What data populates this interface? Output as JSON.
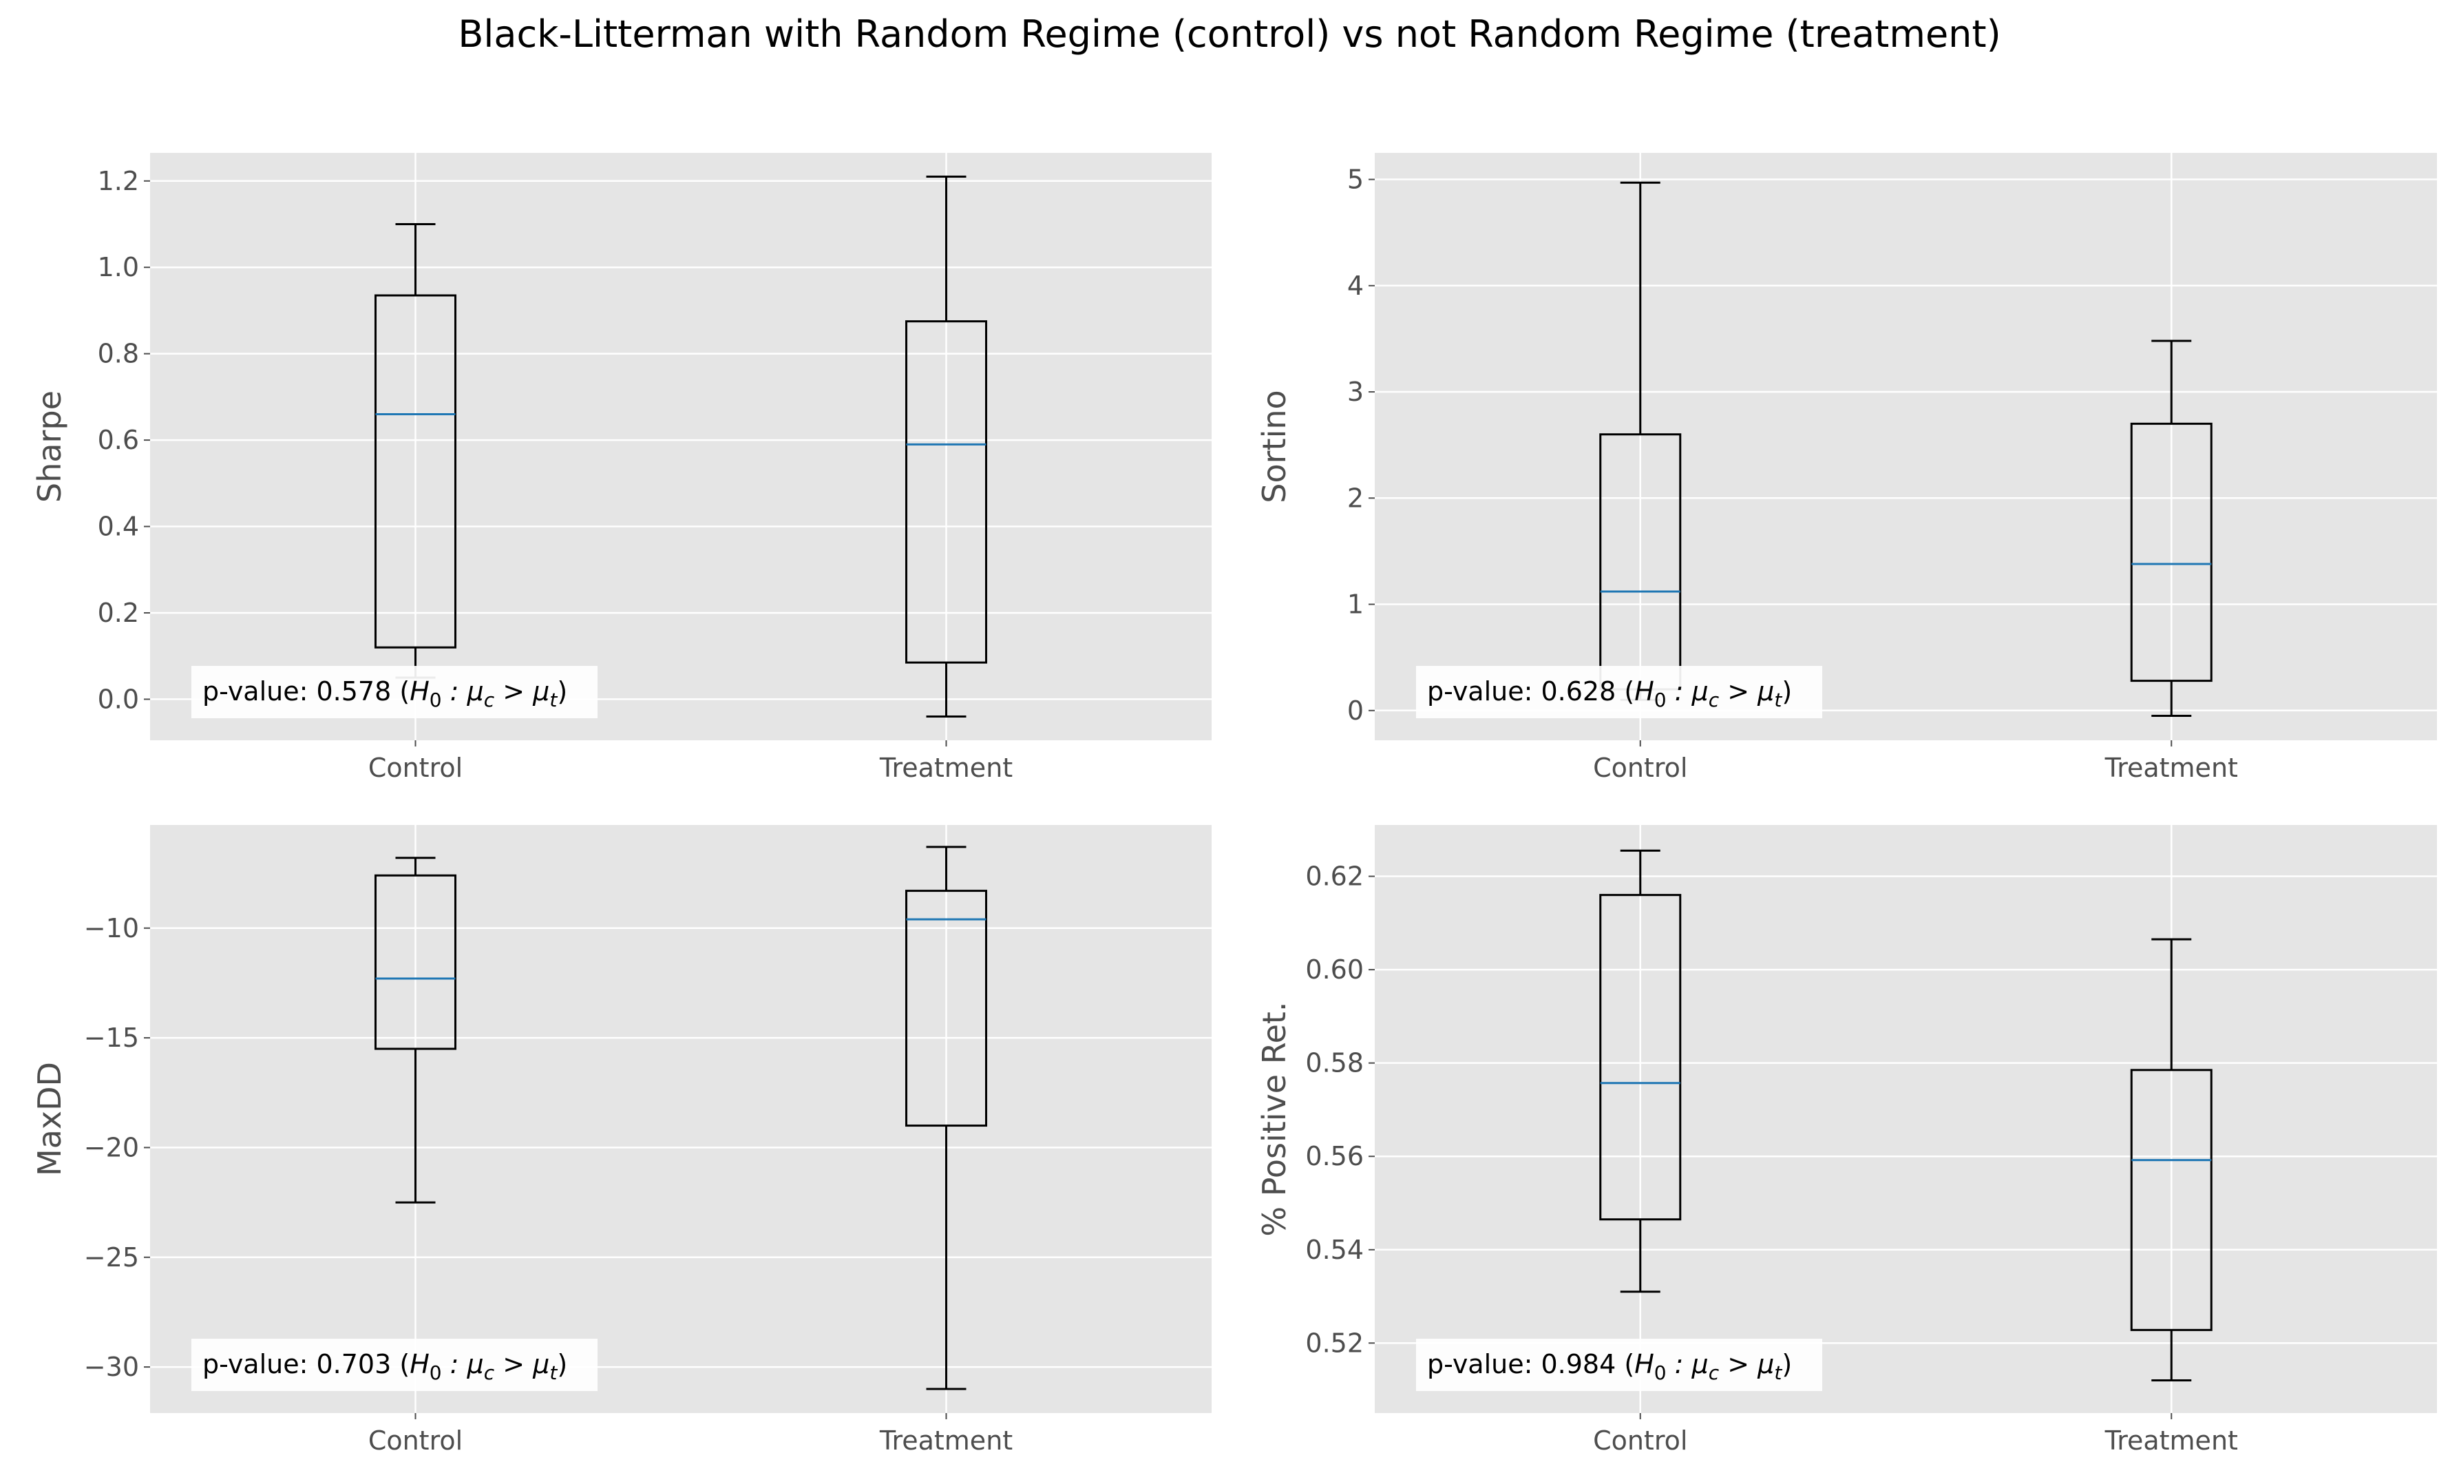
{
  "title": "Black-Litterman with Random Regime (control) vs not Random Regime (treatment)",
  "colors": {
    "panel_bg": "#e5e5e5",
    "grid": "#ffffff",
    "box": "#000000",
    "median": "#1f77b4",
    "tick_text": "#4d4d4d"
  },
  "chart_data": [
    {
      "type": "box",
      "ylabel": "Sharpe",
      "categories": [
        "Control",
        "Treatment"
      ],
      "ylim": [
        -0.095,
        1.265
      ],
      "yticks": [
        0.0,
        0.2,
        0.4,
        0.6,
        0.8,
        1.0,
        1.2
      ],
      "ytick_labels": [
        "0.0",
        "0.2",
        "0.4",
        "0.6",
        "0.8",
        "1.0",
        "1.2"
      ],
      "boxes": [
        {
          "name": "Control",
          "whisker_low": 0.05,
          "q1": 0.12,
          "median": 0.66,
          "q3": 0.935,
          "whisker_high": 1.1
        },
        {
          "name": "Treatment",
          "whisker_low": -0.04,
          "q1": 0.085,
          "median": 0.59,
          "q3": 0.875,
          "whisker_high": 1.21
        }
      ],
      "annotation": {
        "prefix": "p-value: 0.578 (",
        "h": "H",
        "sub0": "0",
        "mid": " : μ",
        "subc": "c",
        "gt": " > μ",
        "subt": "t",
        "suffix": ")"
      }
    },
    {
      "type": "box",
      "ylabel": "Sortino",
      "categories": [
        "Control",
        "Treatment"
      ],
      "ylim": [
        -0.28,
        5.25
      ],
      "yticks": [
        0,
        1,
        2,
        3,
        4,
        5
      ],
      "ytick_labels": [
        "0",
        "1",
        "2",
        "3",
        "4",
        "5"
      ],
      "boxes": [
        {
          "name": "Control",
          "whisker_low": 0.1,
          "q1": 0.2,
          "median": 1.12,
          "q3": 2.6,
          "whisker_high": 4.97
        },
        {
          "name": "Treatment",
          "whisker_low": -0.05,
          "q1": 0.28,
          "median": 1.38,
          "q3": 2.7,
          "whisker_high": 3.48
        }
      ],
      "annotation": {
        "prefix": "p-value: 0.628 (",
        "h": "H",
        "sub0": "0",
        "mid": " : μ",
        "subc": "c",
        "gt": " > μ",
        "subt": "t",
        "suffix": ")"
      }
    },
    {
      "type": "box",
      "ylabel": "MaxDD",
      "categories": [
        "Control",
        "Treatment"
      ],
      "ylim": [
        -32.1,
        -5.3
      ],
      "yticks": [
        -30,
        -25,
        -20,
        -15,
        -10
      ],
      "ytick_labels": [
        "−30",
        "−25",
        "−20",
        "−15",
        "−10"
      ],
      "boxes": [
        {
          "name": "Control",
          "whisker_low": -22.5,
          "q1": -15.5,
          "median": -12.3,
          "q3": -7.6,
          "whisker_high": -6.8
        },
        {
          "name": "Treatment",
          "whisker_low": -31.0,
          "q1": -19.0,
          "median": -9.6,
          "q3": -8.3,
          "whisker_high": -6.3
        }
      ],
      "annotation": {
        "prefix": "p-value: 0.703 (",
        "h": "H",
        "sub0": "0",
        "mid": " : μ",
        "subc": "c",
        "gt": " > μ",
        "subt": "t",
        "suffix": ")"
      }
    },
    {
      "type": "box",
      "ylabel": "% Positive Ret.",
      "categories": [
        "Control",
        "Treatment"
      ],
      "ylim": [
        0.505,
        0.631
      ],
      "yticks": [
        0.52,
        0.54,
        0.56,
        0.58,
        0.6,
        0.62
      ],
      "ytick_labels": [
        "0.52",
        "0.54",
        "0.56",
        "0.58",
        "0.60",
        "0.62"
      ],
      "boxes": [
        {
          "name": "Control",
          "whisker_low": 0.531,
          "q1": 0.5465,
          "median": 0.5757,
          "q3": 0.616,
          "whisker_high": 0.6255
        },
        {
          "name": "Treatment",
          "whisker_low": 0.512,
          "q1": 0.5228,
          "median": 0.5592,
          "q3": 0.5785,
          "whisker_high": 0.6065
        }
      ],
      "annotation": {
        "prefix": "p-value: 0.984 (",
        "h": "H",
        "sub0": "0",
        "mid": " : μ",
        "subc": "c",
        "gt": " > μ",
        "subt": "t",
        "suffix": ")"
      }
    }
  ]
}
